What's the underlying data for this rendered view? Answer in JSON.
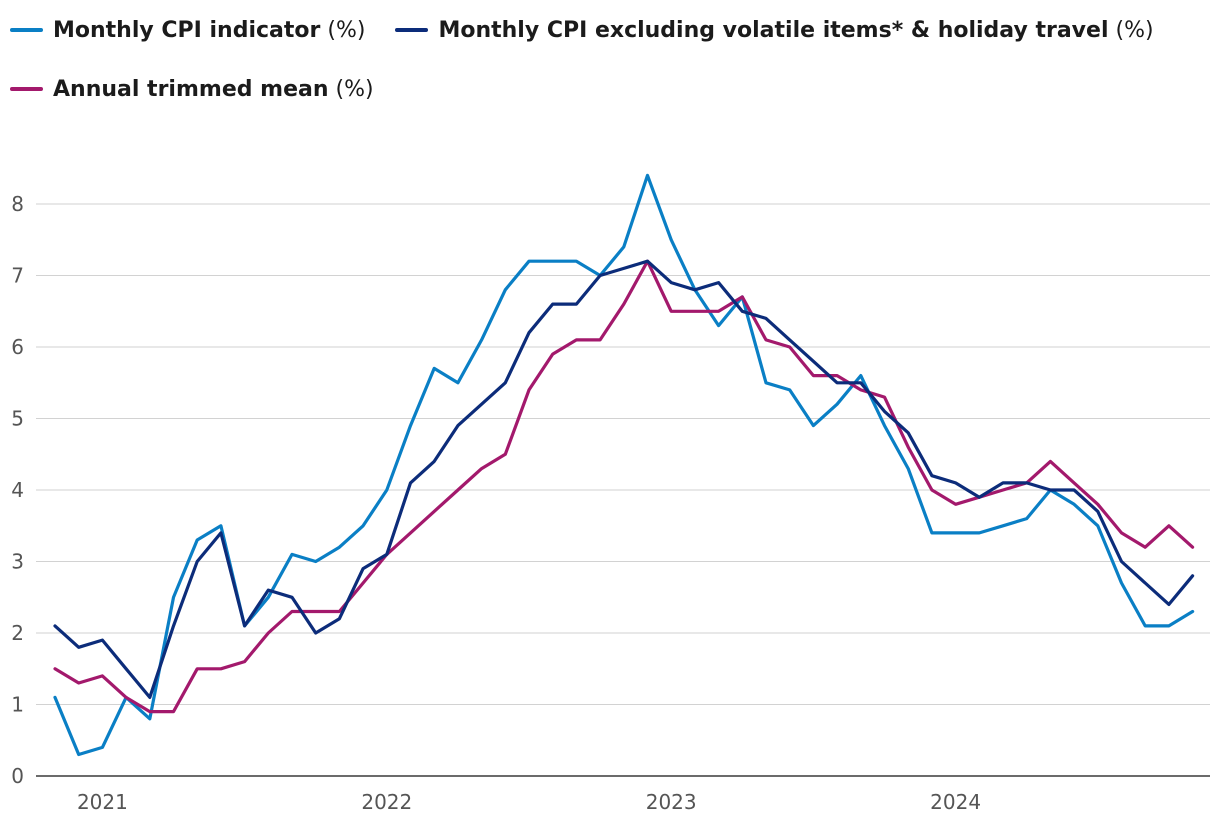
{
  "chart_data": {
    "type": "line",
    "title": "",
    "xlabel": "",
    "ylabel": "",
    "ylim": [
      0,
      8.5
    ],
    "yticks": [
      0,
      1,
      2,
      3,
      4,
      5,
      6,
      7,
      8
    ],
    "xticks": [
      {
        "label": "2021",
        "month_index": 2
      },
      {
        "label": "2022",
        "month_index": 14
      },
      {
        "label": "2023",
        "month_index": 26
      },
      {
        "label": "2024",
        "month_index": 38
      }
    ],
    "grid": true,
    "legend_placement": "top-left",
    "x_months": [
      "2020-11",
      "2020-12",
      "2021-01",
      "2021-02",
      "2021-03",
      "2021-04",
      "2021-05",
      "2021-06",
      "2021-07",
      "2021-08",
      "2021-09",
      "2021-10",
      "2021-11",
      "2021-12",
      "2022-01",
      "2022-02",
      "2022-03",
      "2022-04",
      "2022-05",
      "2022-06",
      "2022-07",
      "2022-08",
      "2022-09",
      "2022-10",
      "2022-11",
      "2022-12",
      "2023-01",
      "2023-02",
      "2023-03",
      "2023-04",
      "2023-05",
      "2023-06",
      "2023-07",
      "2023-08",
      "2023-09",
      "2023-10",
      "2023-11",
      "2023-12",
      "2024-01",
      "2024-02",
      "2024-03",
      "2024-04",
      "2024-05",
      "2024-06",
      "2024-07",
      "2024-08",
      "2024-09",
      "2024-10",
      "2024-11",
      "2024-12",
      "2025-01",
      "2025-02",
      "2025-03",
      "2025-04",
      "2025-05",
      "2025-06",
      "2025-07"
    ],
    "series": [
      {
        "name": "Monthly CPI indicator",
        "unit": "(%)",
        "color": "#0a7fc5",
        "values": [
          1.1,
          0.3,
          0.4,
          1.1,
          0.8,
          2.5,
          3.3,
          3.5,
          2.1,
          2.5,
          3.1,
          3.0,
          3.2,
          3.5,
          4.0,
          4.9,
          5.7,
          5.5,
          6.1,
          6.8,
          7.2,
          7.2,
          7.2,
          7.0,
          7.4,
          8.4,
          7.5,
          6.8,
          6.3,
          6.7,
          5.5,
          5.4,
          4.9,
          5.2,
          5.6,
          4.9,
          4.3,
          3.4,
          3.4,
          3.4,
          3.5,
          3.6,
          4.0,
          3.8,
          3.5,
          2.7,
          2.1,
          2.1,
          2.3
        ]
      },
      {
        "name": "Monthly CPI excluding volatile items* & holiday travel",
        "unit": "(%)",
        "color": "#0c2c7a",
        "values": [
          2.1,
          1.8,
          1.9,
          1.5,
          1.1,
          2.1,
          3.0,
          3.4,
          2.1,
          2.6,
          2.5,
          2.0,
          2.2,
          2.9,
          3.1,
          4.1,
          4.4,
          4.9,
          5.2,
          5.5,
          6.2,
          6.6,
          6.6,
          7.0,
          7.1,
          7.2,
          6.9,
          6.8,
          6.9,
          6.5,
          6.4,
          6.1,
          5.8,
          5.5,
          5.5,
          5.1,
          4.8,
          4.2,
          4.1,
          3.9,
          4.1,
          4.1,
          4.0,
          4.0,
          3.7,
          3.0,
          2.7,
          2.4,
          2.8
        ]
      },
      {
        "name": "Annual trimmed mean",
        "unit": "(%)",
        "color": "#a3196c",
        "values": [
          1.5,
          1.3,
          1.4,
          1.1,
          0.9,
          0.9,
          1.5,
          1.5,
          1.6,
          2.0,
          2.3,
          2.3,
          2.3,
          2.7,
          3.1,
          3.4,
          3.7,
          4.0,
          4.3,
          4.5,
          5.4,
          5.9,
          6.1,
          6.1,
          6.6,
          7.2,
          6.5,
          6.5,
          6.5,
          6.7,
          6.1,
          6.0,
          5.6,
          5.6,
          5.4,
          5.3,
          4.6,
          4.0,
          3.8,
          3.9,
          4.0,
          4.1,
          4.4,
          4.1,
          3.8,
          3.4,
          3.2,
          3.5,
          3.2
        ]
      }
    ]
  }
}
